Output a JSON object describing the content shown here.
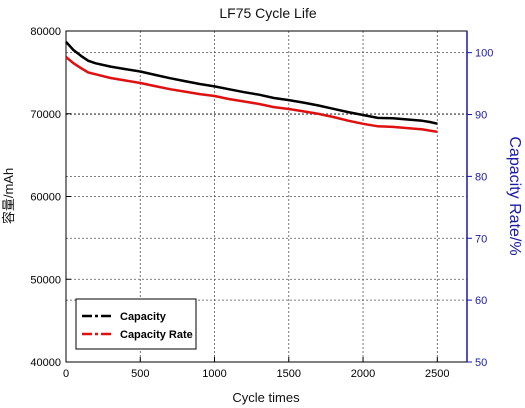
{
  "chart_data": {
    "type": "line",
    "title": "LF75 Cycle Life",
    "xlabel": "Cycle times",
    "ylabel": "容量/mAh",
    "y2label": "Capacity Rate/%",
    "xlim": [
      0,
      2700
    ],
    "ylim": [
      40000,
      80000
    ],
    "y2lim": [
      50,
      103.5
    ],
    "x_ticks": [
      0,
      500,
      1000,
      1500,
      2000,
      2500
    ],
    "y_ticks": [
      40000,
      50000,
      60000,
      70000,
      80000
    ],
    "y2_ticks": [
      50,
      60,
      70,
      80,
      90,
      100
    ],
    "grid": true,
    "legend_position": "bottom-left",
    "colors": {
      "capacity": "#000000",
      "capacity_rate": "#e01010",
      "right_axis": "#1a1aa6"
    },
    "series": [
      {
        "name": "Capacity",
        "axis": "left",
        "x": [
          0,
          50,
          100,
          150,
          200,
          300,
          400,
          500,
          600,
          700,
          800,
          900,
          1000,
          1100,
          1200,
          1300,
          1400,
          1500,
          1600,
          1700,
          1800,
          1900,
          2000,
          2100,
          2200,
          2300,
          2400,
          2450,
          2500
        ],
        "values": [
          78700,
          77700,
          77000,
          76400,
          76100,
          75700,
          75400,
          75100,
          74700,
          74300,
          73950,
          73600,
          73300,
          72950,
          72600,
          72300,
          71900,
          71650,
          71350,
          71000,
          70600,
          70200,
          69850,
          69500,
          69450,
          69300,
          69150,
          69000,
          68800
        ]
      },
      {
        "name": "Capacity Rate",
        "axis": "right",
        "x": [
          0,
          50,
          100,
          150,
          200,
          300,
          400,
          500,
          600,
          700,
          800,
          900,
          1000,
          1100,
          1200,
          1300,
          1400,
          1500,
          1600,
          1700,
          1800,
          1900,
          2000,
          2100,
          2200,
          2300,
          2400,
          2450,
          2500
        ],
        "values": [
          99.3,
          98.3,
          97.5,
          96.8,
          96.5,
          95.9,
          95.5,
          95.1,
          94.6,
          94.1,
          93.7,
          93.3,
          93.0,
          92.5,
          92.1,
          91.7,
          91.2,
          90.9,
          90.5,
          90.1,
          89.6,
          89.0,
          88.5,
          88.1,
          88.0,
          87.8,
          87.6,
          87.4,
          87.2
        ]
      }
    ]
  }
}
